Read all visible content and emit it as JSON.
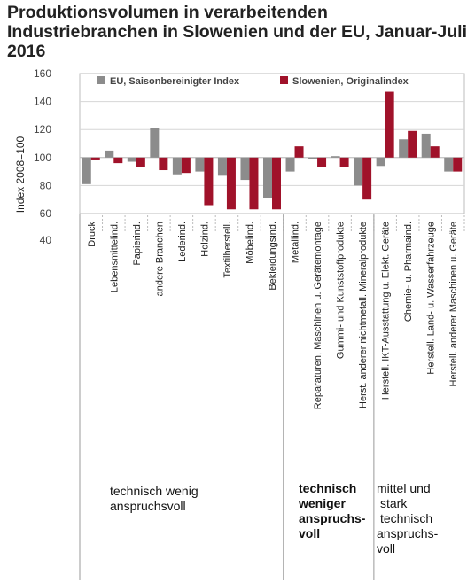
{
  "chart_data": {
    "type": "bar",
    "title_lines": [
      "Produktionsvolumen in verarbeitenden",
      "Industriebranchen in Slowenien und der EU, Januar-Juli",
      "2016"
    ],
    "ylabel": "Index 2008=100",
    "xlabel": "",
    "ylim": [
      40,
      160
    ],
    "plot_range": [
      60,
      160
    ],
    "baseline": 100,
    "yticks": [
      40,
      60,
      80,
      100,
      120,
      140,
      160
    ],
    "grid": true,
    "legend_position": "top",
    "colors": {
      "eu": "#8c8c8c",
      "slo": "#a0122a"
    },
    "categories": [
      "Druck",
      "Lebensmittelind.",
      "Papierind.",
      "andere Branchen",
      "Lederind.",
      "Holzind.",
      "Textilherstell.",
      "Möbelind.",
      "Bekleidungsind.",
      "Metallind.",
      "Reparaturen, Maschinen u. Gerätemontage",
      "Gummi- und Kunststoffprodukte",
      "Herst. anderer nichtmetall. Mineralprodukte",
      "Herstell. IKT-Ausstattung u. Elekt. Geräte",
      "Chemie- u. Pharmaind.",
      "Herstell. Land- u. Wasserfahrzeuge",
      "Herstell. anderer Maschinen u. Geräte"
    ],
    "series": [
      {
        "name": "EU, Saisonbereinigter Index",
        "values": [
          81,
          105,
          97,
          121,
          88,
          90,
          87,
          84,
          71,
          90,
          99,
          101,
          80,
          94,
          113,
          117,
          90
        ]
      },
      {
        "name": "Slowenien, Originalindex",
        "values": [
          98,
          96,
          93,
          91,
          89,
          66,
          63,
          63,
          63,
          108,
          93,
          93,
          70,
          147,
          119,
          108,
          90
        ]
      }
    ],
    "groups": [
      {
        "label_lines": [
          "technisch wenig",
          "anspruchsvoll"
        ],
        "bold": false,
        "start": 0,
        "end": 8
      },
      {
        "label_lines": [
          "technisch",
          "weniger",
          "anspruchs-",
          "voll"
        ],
        "bold": true,
        "start": 9,
        "end": 12
      },
      {
        "label_lines": [
          "mittel und",
          "stark",
          "technisch",
          "anspruchs-",
          "voll"
        ],
        "bold": false,
        "start": 13,
        "end": 16
      }
    ]
  }
}
